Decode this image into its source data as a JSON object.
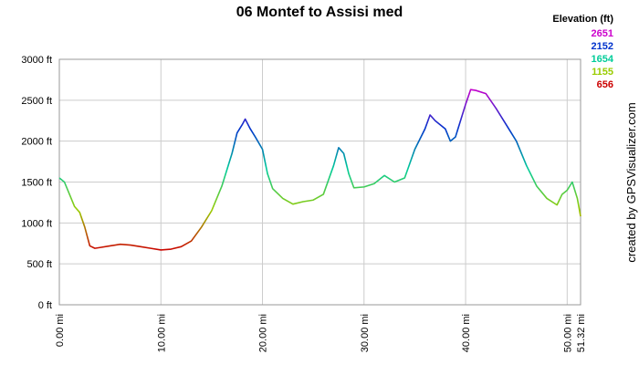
{
  "chart_data": {
    "type": "line",
    "title": "06 Montef to Assisi med",
    "credit": "created by GPSVisualizer.com",
    "x": [
      0,
      0.5,
      1,
      1.5,
      2,
      2.5,
      3,
      3.5,
      4,
      5,
      6,
      7,
      8,
      9,
      10,
      11,
      12,
      13,
      14,
      15,
      16,
      17,
      17.5,
      18,
      18.3,
      18.8,
      19.3,
      20,
      20.5,
      21,
      22,
      23,
      24,
      25,
      26,
      27,
      27.5,
      28,
      28.5,
      29,
      30,
      31,
      32,
      33,
      34,
      35,
      36,
      36.5,
      37,
      38,
      38.5,
      39,
      40,
      40.5,
      41,
      42,
      43,
      44,
      45,
      46,
      47,
      48,
      49,
      49.5,
      50,
      50.5,
      51,
      51.32
    ],
    "series": [
      {
        "name": "Elevation",
        "values": [
          1550,
          1500,
          1350,
          1200,
          1130,
          950,
          720,
          690,
          700,
          720,
          740,
          730,
          710,
          690,
          670,
          680,
          710,
          780,
          950,
          1150,
          1450,
          1850,
          2100,
          2200,
          2270,
          2150,
          2050,
          1900,
          1600,
          1420,
          1300,
          1230,
          1260,
          1280,
          1350,
          1700,
          1920,
          1850,
          1600,
          1430,
          1440,
          1480,
          1580,
          1500,
          1550,
          1900,
          2150,
          2320,
          2250,
          2150,
          2000,
          2050,
          2450,
          2630,
          2620,
          2580,
          2400,
          2200,
          2000,
          1700,
          1450,
          1300,
          1220,
          1350,
          1400,
          1500,
          1300,
          1080
        ]
      }
    ],
    "color_scale_title": "Elevation (ft)",
    "color_scale": [
      {
        "value": 2651,
        "color": "#cc00cc"
      },
      {
        "value": 2152,
        "color": "#0033cc"
      },
      {
        "value": 1654,
        "color": "#00cc99"
      },
      {
        "value": 1155,
        "color": "#99cc00"
      },
      {
        "value": 656,
        "color": "#cc0000"
      }
    ],
    "xlim": [
      0,
      51.32
    ],
    "ylim": [
      0,
      3000
    ],
    "xticks": [
      {
        "value": 0,
        "label": "0.00 mi"
      },
      {
        "value": 10,
        "label": "10.00 mi"
      },
      {
        "value": 20,
        "label": "20.00 mi"
      },
      {
        "value": 30,
        "label": "30.00 mi"
      },
      {
        "value": 40,
        "label": "40.00 mi"
      },
      {
        "value": 50,
        "label": "50.00 mi"
      },
      {
        "value": 51.32,
        "label": "51.32 mi"
      }
    ],
    "yticks": [
      {
        "value": 0,
        "label": "0 ft"
      },
      {
        "value": 500,
        "label": "500 ft"
      },
      {
        "value": 1000,
        "label": "1000 ft"
      },
      {
        "value": 1500,
        "label": "1500 ft"
      },
      {
        "value": 2000,
        "label": "2000 ft"
      },
      {
        "value": 2500,
        "label": "2500 ft"
      },
      {
        "value": 3000,
        "label": "3000 ft"
      }
    ],
    "grid": true
  }
}
